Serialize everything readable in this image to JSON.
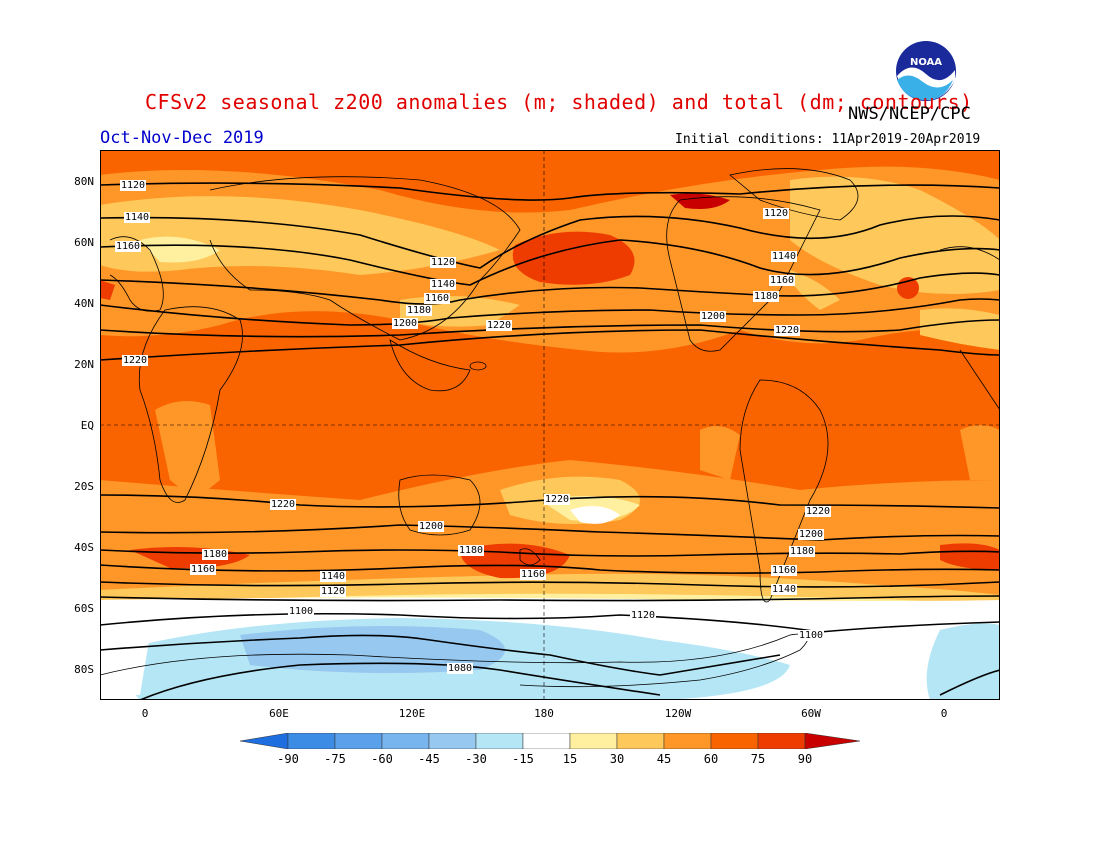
{
  "header": {
    "title": "CFSv2 seasonal z200 anomalies (m; shaded) and total (dm; contours)",
    "agency": "NWS/NCEP/CPC",
    "season": "Oct-Nov-Dec 2019",
    "initial_conditions": "Initial conditions: 11Apr2019-20Apr2019",
    "logo_text": "NOAA"
  },
  "colors": {
    "title": "#e00000",
    "season": "#0000cc",
    "anomaly_palette": [
      "#1e6ee0",
      "#3c8ce6",
      "#5aa0ea",
      "#96c8f0",
      "#b4e6f5",
      "#ffffff",
      "#fff0a0",
      "#ffc85a",
      "#ff9628",
      "#fa6400",
      "#ee3c00",
      "#c80000"
    ]
  },
  "map": {
    "projection": "cylindrical equidistant",
    "lat_labels": [
      "80N",
      "60N",
      "40N",
      "20N",
      "EQ",
      "20S",
      "40S",
      "60S",
      "80S"
    ],
    "lon_labels": [
      "0",
      "60E",
      "120E",
      "180",
      "120W",
      "60W",
      "0"
    ],
    "contour_labels": {
      "c1220_north": "1220",
      "c1200_north": "1200",
      "c1180_north": "1180",
      "c1160_north": "1160",
      "c1140_north": "1140",
      "c1120_north": "1120",
      "c1220_south": "1220",
      "c1200_south": "1200",
      "c1180_south": "1180",
      "c1160_south": "1160",
      "c1140_south": "1140",
      "c1120_south": "1120",
      "c1100_south": "1100",
      "c1080_south": "1080"
    }
  },
  "colorbar": {
    "values": [
      "-90",
      "-75",
      "-60",
      "-45",
      "-30",
      "-15",
      "15",
      "30",
      "45",
      "60",
      "75",
      "90"
    ]
  }
}
